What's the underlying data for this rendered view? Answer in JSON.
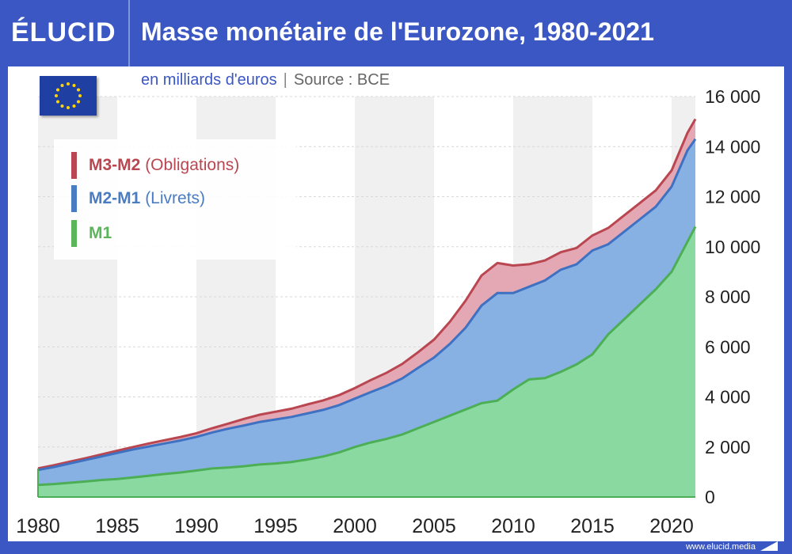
{
  "header": {
    "logo": "ÉLUCID",
    "title": "Masse monétaire de l'Eurozone, 1980-2021"
  },
  "subtitle": {
    "unit": "en milliards d'euros",
    "separator": "|",
    "source": "Source : BCE"
  },
  "legend": [
    {
      "bold": "M3-M2",
      "rest": "(Obligations)",
      "color": "#b94650"
    },
    {
      "bold": "M2-M1",
      "rest": "(Livrets)",
      "color": "#4a7cc4"
    },
    {
      "bold": "M1",
      "rest": "",
      "color": "#5bb55b"
    }
  ],
  "footer": {
    "url": "www.elucid.media"
  },
  "colors": {
    "frame": "#3a57c4",
    "m1_fill": "#8ad9a0",
    "m1_line": "#4caf55",
    "m2_fill": "#87b0e3",
    "m2_line": "#3e71c1",
    "m3_fill": "#e3a8b3",
    "m3_line": "#b94650",
    "band": "#f0f0f0"
  },
  "icons": {
    "flag": "eu-flag-icon",
    "footer_mark": "elucid-arrow-icon"
  },
  "chart_data": {
    "type": "area",
    "stacked": true,
    "title": "Masse monétaire de l'Eurozone, 1980-2021",
    "ylabel": "en milliards d'euros",
    "xlim": [
      1980,
      2021.5
    ],
    "ylim": [
      0,
      16000
    ],
    "x_ticks": [
      "1980",
      "1985",
      "1990",
      "1995",
      "2000",
      "2005",
      "2010",
      "2015",
      "2020"
    ],
    "y_ticks": [
      "0",
      "2 000",
      "4 000",
      "6 000",
      "8 000",
      "10 000",
      "12 000",
      "14 000",
      "16 000"
    ],
    "y_axis_side": "right",
    "alternating_bands": true,
    "legend_position": "top-left",
    "x": [
      1980,
      1981,
      1982,
      1983,
      1984,
      1985,
      1986,
      1987,
      1988,
      1989,
      1990,
      1991,
      1992,
      1993,
      1994,
      1995,
      1996,
      1997,
      1998,
      1999,
      2000,
      2001,
      2002,
      2003,
      2004,
      2005,
      2006,
      2007,
      2008,
      2009,
      2010,
      2011,
      2012,
      2013,
      2014,
      2015,
      2016,
      2017,
      2018,
      2019,
      2020,
      2021,
      2021.5
    ],
    "series": [
      {
        "name": "M1",
        "values": [
          480,
          520,
          570,
          620,
          680,
          720,
          780,
          850,
          920,
          980,
          1060,
          1140,
          1180,
          1230,
          1300,
          1340,
          1400,
          1500,
          1620,
          1780,
          2000,
          2180,
          2320,
          2500,
          2750,
          3000,
          3250,
          3500,
          3750,
          3850,
          4300,
          4700,
          4750,
          5000,
          5300,
          5700,
          6500,
          7100,
          7700,
          8300,
          9000,
          10200,
          10800
        ]
      },
      {
        "name": "M2-M1",
        "values": [
          600,
          680,
          770,
          860,
          940,
          1040,
          1120,
          1170,
          1220,
          1280,
          1340,
          1440,
          1550,
          1630,
          1700,
          1760,
          1800,
          1840,
          1860,
          1890,
          1930,
          2010,
          2120,
          2240,
          2410,
          2570,
          2870,
          3270,
          3900,
          4300,
          3850,
          3700,
          3900,
          4080,
          4000,
          4150,
          3600,
          3500,
          3400,
          3300,
          3400,
          3650,
          3500
        ]
      },
      {
        "name": "M3-M2",
        "values": [
          60,
          70,
          70,
          70,
          80,
          90,
          100,
          120,
          130,
          140,
          150,
          170,
          200,
          260,
          290,
          310,
          330,
          360,
          380,
          400,
          420,
          480,
          520,
          580,
          630,
          720,
          880,
          1080,
          1200,
          1200,
          1100,
          900,
          800,
          700,
          650,
          600,
          650,
          650,
          650,
          650,
          650,
          700,
          800
        ]
      }
    ]
  }
}
